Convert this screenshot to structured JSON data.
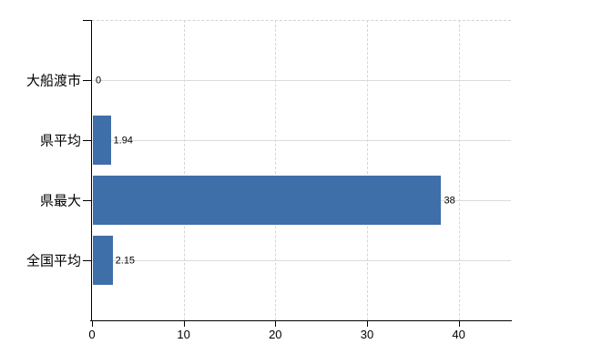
{
  "chart_data": {
    "type": "bar",
    "orientation": "horizontal",
    "title": "",
    "xlabel": "",
    "ylabel": "",
    "categories": [
      "大船渡市",
      "県平均",
      "県最大",
      "全国平均"
    ],
    "values": [
      0,
      1.94,
      38,
      2.15
    ],
    "value_labels": [
      "0",
      "1.94",
      "38",
      "2.15"
    ],
    "x_ticks": [
      "0",
      "10",
      "20",
      "30",
      "40"
    ],
    "x_tick_values": [
      0,
      10,
      20,
      30,
      40
    ],
    "xlim": [
      0,
      45.7
    ],
    "grid": true,
    "legend": false,
    "colors": {
      "bar": "#3f6fa9",
      "grid_horizontal": "#d7ddd7",
      "grid_vertical": "#d9d3d9",
      "plot_border_dashed": "#d3d3d3",
      "axis": "#000000",
      "text": "#000000",
      "background": "#ffffff"
    }
  }
}
